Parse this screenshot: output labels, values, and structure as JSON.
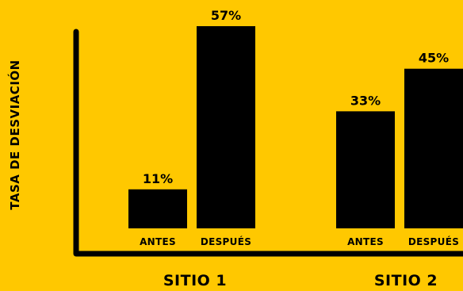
{
  "chart_data": {
    "type": "bar",
    "ylabel": "TASA DE DESVIACIÓN",
    "ylim": [
      0,
      65
    ],
    "grid": false,
    "background": "#FFC800",
    "bar_color": "#000000",
    "groups": [
      {
        "name": "SITIO 1",
        "bars": [
          {
            "category": "ANTES",
            "value": 11,
            "label": "11%"
          },
          {
            "category": "DESPUÉS",
            "value": 57,
            "label": "57%"
          }
        ]
      },
      {
        "name": "SITIO 2",
        "bars": [
          {
            "category": "ANTES",
            "value": 33,
            "label": "33%"
          },
          {
            "category": "DESPUÉS",
            "value": 45,
            "label": "45%"
          }
        ]
      }
    ]
  }
}
